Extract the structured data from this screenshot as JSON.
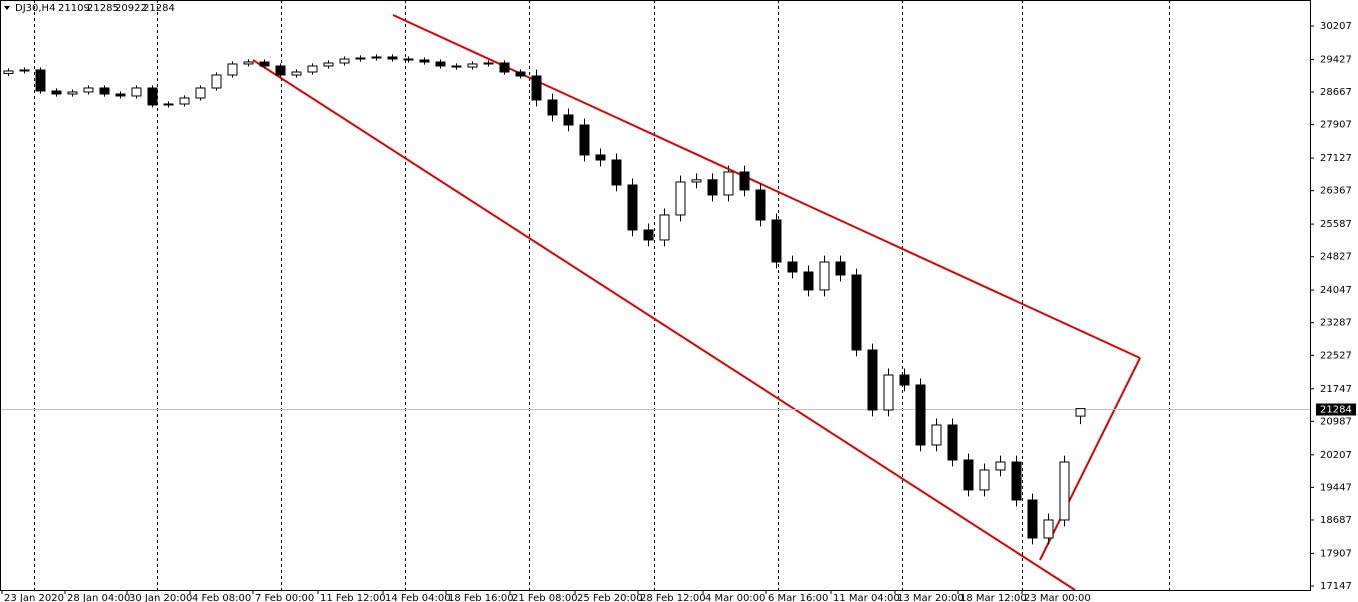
{
  "chart_data": {
    "type": "candlestick",
    "title": "DJ30,H4",
    "x": [
      0,
      1,
      2,
      3,
      4,
      5,
      6,
      7,
      8,
      9,
      10,
      11,
      12,
      13,
      14,
      15,
      16,
      17,
      18,
      19,
      20,
      21,
      22,
      23,
      24,
      25,
      26,
      27,
      28,
      29,
      30,
      31,
      32,
      33,
      34,
      35,
      36,
      37,
      38,
      39,
      40,
      41,
      42,
      43,
      44,
      45,
      46,
      47,
      48,
      49,
      50,
      51,
      52,
      53,
      54,
      55,
      56,
      57,
      58,
      59,
      60,
      61,
      62,
      63,
      64,
      65,
      66,
      67
    ],
    "open": [
      29100,
      29158,
      29181,
      28691,
      28621,
      28668,
      28761,
      28621,
      28575,
      28761,
      28365,
      28388,
      28528,
      28761,
      29064,
      29321,
      29367,
      29274,
      29064,
      29134,
      29274,
      29344,
      29437,
      29461,
      29484,
      29437,
      29414,
      29367,
      29274,
      29250,
      29321,
      29344,
      29134,
      29041,
      28481,
      28132,
      27898,
      27199,
      27082,
      26499,
      25450,
      25217,
      25800,
      26569,
      26620,
      26266,
      26802,
      26383,
      25683,
      24703,
      24470,
      24051,
      24703,
      24400,
      22651,
      21252,
      22068,
      21835,
      20436,
      20902,
      20086,
      19387,
      19853,
      20039,
      19153,
      18267,
      18687,
      21109
    ],
    "high": [
      29218,
      29241,
      29241,
      28751,
      28728,
      28821,
      28821,
      28681,
      28821,
      28821,
      28448,
      28588,
      28821,
      29124,
      29381,
      29427,
      29427,
      29334,
      29194,
      29334,
      29404,
      29497,
      29521,
      29544,
      29544,
      29497,
      29474,
      29427,
      29334,
      29381,
      29404,
      29404,
      29194,
      29191,
      28631,
      28282,
      28048,
      27349,
      27232,
      26649,
      25600,
      25950,
      26719,
      26770,
      26770,
      26952,
      26952,
      26533,
      25833,
      24853,
      24620,
      24853,
      24853,
      24550,
      22801,
      22218,
      22218,
      21985,
      21052,
      21052,
      20236,
      20003,
      20189,
      20189,
      19303,
      18837,
      20189,
      21285
    ],
    "low": [
      29040,
      29098,
      28631,
      28561,
      28561,
      28608,
      28561,
      28515,
      28515,
      28305,
      28305,
      28328,
      28468,
      28701,
      29004,
      29261,
      29214,
      29004,
      29004,
      29074,
      29214,
      29284,
      29377,
      29401,
      29377,
      29354,
      29307,
      29214,
      29190,
      29190,
      29261,
      29074,
      28981,
      28331,
      27982,
      27748,
      27049,
      26932,
      26349,
      25300,
      25067,
      25067,
      25650,
      26419,
      26116,
      26116,
      26233,
      25533,
      24553,
      24320,
      23901,
      23901,
      24250,
      22501,
      21102,
      21102,
      21685,
      20286,
      20286,
      19936,
      19237,
      19237,
      19703,
      19003,
      18117,
      18117,
      18537,
      20922
    ],
    "close": [
      29158,
      29181,
      28691,
      28621,
      28668,
      28761,
      28621,
      28575,
      28761,
      28365,
      28388,
      28528,
      28761,
      29064,
      29321,
      29367,
      29274,
      29064,
      29134,
      29274,
      29344,
      29437,
      29461,
      29484,
      29437,
      29414,
      29367,
      29274,
      29250,
      29321,
      29344,
      29134,
      29041,
      28481,
      28132,
      27898,
      27199,
      27082,
      26499,
      25450,
      25217,
      25800,
      26569,
      26620,
      26266,
      26802,
      26383,
      25683,
      24703,
      24470,
      24051,
      24703,
      24400,
      22651,
      21252,
      22068,
      21835,
      20436,
      20902,
      20086,
      19387,
      19853,
      20039,
      19153,
      18267,
      18687,
      20039,
      21284
    ],
    "xlim": [
      -0.5,
      81.375
    ],
    "xticks": [
      {
        "value": -0.375,
        "label": "23 Jan 2020"
      },
      {
        "value": 3.5625,
        "label": "28 Jan 04:00"
      },
      {
        "value": 7.4375,
        "label": "30 Jan 20:00"
      },
      {
        "value": 11.375,
        "label": "4 Feb 08:00"
      },
      {
        "value": 15.3125,
        "label": "7 Feb 00:00"
      },
      {
        "value": 19.375,
        "label": "11 Feb 12:00"
      },
      {
        "value": 23.4375,
        "label": "14 Feb 04:00"
      },
      {
        "value": 27.375,
        "label": "18 Feb 16:00"
      },
      {
        "value": 31.375,
        "label": "21 Feb 08:00"
      },
      {
        "value": 35.4375,
        "label": "25 Feb 20:00"
      },
      {
        "value": 39.375,
        "label": "28 Feb 12:00"
      },
      {
        "value": 43.4375,
        "label": "4 Mar 00:00"
      },
      {
        "value": 47.375,
        "label": "6 Mar 16:00"
      },
      {
        "value": 51.4375,
        "label": "11 Mar 04:00"
      },
      {
        "value": 55.4375,
        "label": "13 Mar 20:00"
      },
      {
        "value": 59.375,
        "label": "18 Mar 12:00"
      },
      {
        "value": 63.375,
        "label": "23 Mar 00:00"
      }
    ],
    "ylim": [
      17054,
      30813
    ],
    "yticks": [
      30207,
      29427,
      28667,
      27907,
      27127,
      26367,
      25587,
      24827,
      24047,
      23287,
      22527,
      21747,
      20987,
      20207,
      19447,
      18687,
      17907,
      17147
    ],
    "up_color": "#ffffff",
    "down_color": "#000000",
    "trendline_color": "#e00000"
  }
}
